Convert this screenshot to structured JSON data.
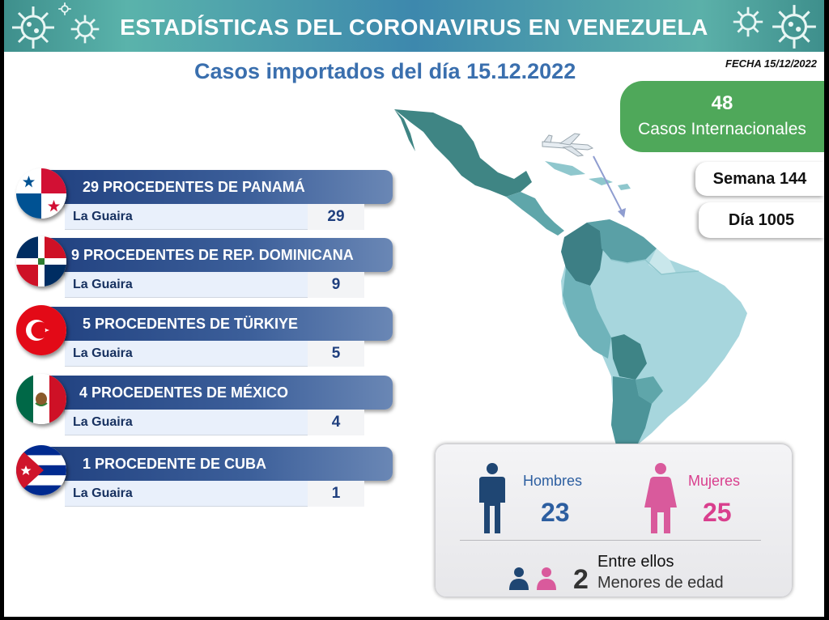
{
  "header": {
    "title": "ESTADÍSTICAS DEL CORONAVIRUS EN VENEZUELA",
    "subtitle": "Casos importados del día 15.12.2022",
    "date": "FECHA 15/12/2022"
  },
  "stats": {
    "international_count": "48",
    "international_label": "Casos Internacionales",
    "week": "Semana 144",
    "day": "Día 1005"
  },
  "countries": [
    {
      "label": "29 PROCEDENTES DE PANAMÁ",
      "state": "La Guaira",
      "count": "29",
      "flag": "panama-flag-icon"
    },
    {
      "label": "9 PROCEDENTES DE REP. DOMINICANA",
      "state": "La Guaira",
      "count": "9",
      "flag": "dominican-republic-flag-icon"
    },
    {
      "label": "5 PROCEDENTES DE TÜRKIYE",
      "state": "La Guaira",
      "count": "5",
      "flag": "turkey-flag-icon"
    },
    {
      "label": "4 PROCEDENTES DE MÉXICO",
      "state": "La Guaira",
      "count": "4",
      "flag": "mexico-flag-icon"
    },
    {
      "label": "1 PROCEDENTE DE CUBA",
      "state": "La Guaira",
      "count": "1",
      "flag": "cuba-flag-icon"
    }
  ],
  "gender": {
    "men_label": "Hombres",
    "men_count": "23",
    "women_label": "Mujeres",
    "women_count": "25",
    "between_label": "Entre ellos",
    "minors_count": "2",
    "minors_label": "Menores de edad"
  },
  "colors": {
    "banner": "#3d88ad",
    "subtitle": "#3a6fae",
    "intl_box": "#4fa85a",
    "row_header": "#1f3f7e",
    "men": "#2c5ea0",
    "women": "#d93e8d"
  }
}
